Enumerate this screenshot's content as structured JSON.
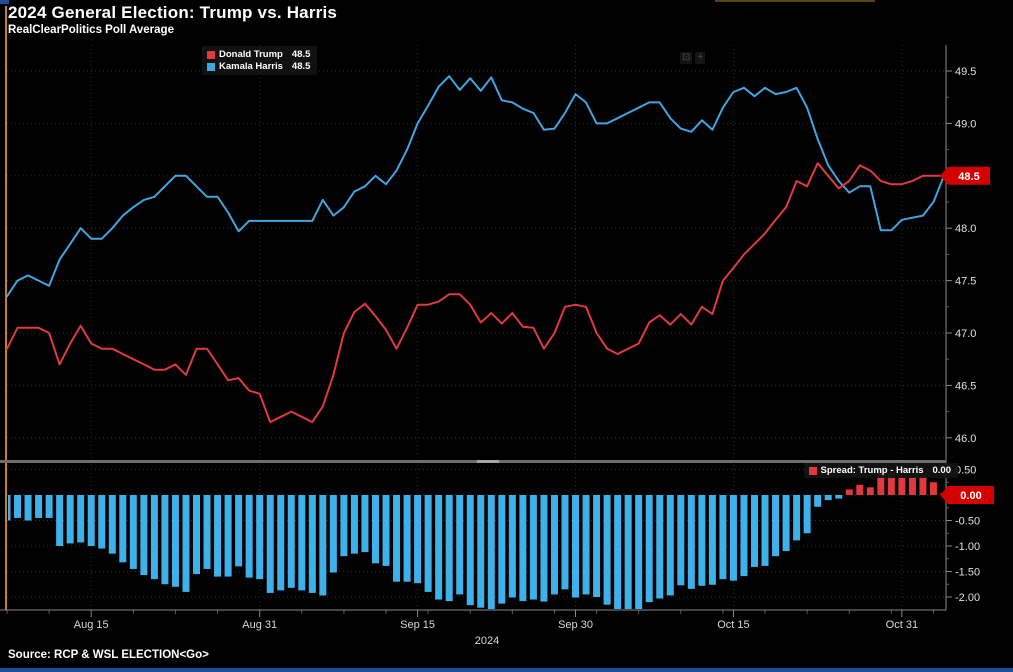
{
  "header": {
    "title": "2024 General Election: Trump vs. Harris",
    "subtitle": "RealClearPolitics Poll Average"
  },
  "legend": {
    "trump_label": "Donald Trump",
    "trump_value": "48.5",
    "harris_label": "Kamala Harris",
    "harris_value": "48.5"
  },
  "spread_legend": {
    "label": "Spread: Trump - Harris",
    "value": "0.00"
  },
  "axis": {
    "main_badge": "48.5",
    "lower_badge": "0.00",
    "year_label": "2024"
  },
  "footer": {
    "source": "Source: RCP & WSL ELECTION<Go>"
  },
  "colors": {
    "trump": "#e03a3e",
    "harris": "#42a5e0",
    "bar_negative": "#3fb1ea",
    "bar_positive": "#e0383c",
    "badge": "#d40000",
    "grid": "#2e2e2e",
    "axis_line": "#8a8a8a",
    "tick_text": "#e0e0e0",
    "amber": "#c87f2f"
  },
  "chart_data": {
    "type": "line",
    "title": "2024 General Election: Trump vs. Harris",
    "subtitle": "RealClearPolitics Poll Average",
    "legend_position": "top-left",
    "grid": "dotted",
    "x": [
      "Aug 7",
      "Aug 8",
      "Aug 9",
      "Aug 10",
      "Aug 11",
      "Aug 12",
      "Aug 13",
      "Aug 14",
      "Aug 15",
      "Aug 16",
      "Aug 17",
      "Aug 18",
      "Aug 19",
      "Aug 20",
      "Aug 21",
      "Aug 22",
      "Aug 23",
      "Aug 24",
      "Aug 25",
      "Aug 26",
      "Aug 27",
      "Aug 28",
      "Aug 29",
      "Aug 30",
      "Aug 31",
      "Sep 1",
      "Sep 2",
      "Sep 3",
      "Sep 4",
      "Sep 5",
      "Sep 6",
      "Sep 7",
      "Sep 8",
      "Sep 9",
      "Sep 10",
      "Sep 11",
      "Sep 12",
      "Sep 13",
      "Sep 14",
      "Sep 15",
      "Sep 16",
      "Sep 17",
      "Sep 18",
      "Sep 19",
      "Sep 20",
      "Sep 21",
      "Sep 22",
      "Sep 23",
      "Sep 24",
      "Sep 25",
      "Sep 26",
      "Sep 27",
      "Sep 28",
      "Sep 29",
      "Sep 30",
      "Oct 1",
      "Oct 2",
      "Oct 3",
      "Oct 4",
      "Oct 5",
      "Oct 6",
      "Oct 7",
      "Oct 8",
      "Oct 9",
      "Oct 10",
      "Oct 11",
      "Oct 12",
      "Oct 13",
      "Oct 14",
      "Oct 15",
      "Oct 16",
      "Oct 17",
      "Oct 18",
      "Oct 19",
      "Oct 20",
      "Oct 21",
      "Oct 22",
      "Oct 23",
      "Oct 24",
      "Oct 25",
      "Oct 26",
      "Oct 27",
      "Oct 28",
      "Oct 29",
      "Oct 30",
      "Oct 31",
      "Nov 1",
      "Nov 2",
      "Nov 3",
      "Nov 4"
    ],
    "series": [
      {
        "name": "Donald Trump",
        "color": "#e03a3e",
        "last_value": 48.5,
        "values": [
          46.85,
          47.05,
          47.05,
          47.05,
          47.0,
          46.7,
          46.9,
          47.07,
          46.9,
          46.85,
          46.85,
          46.8,
          46.75,
          46.7,
          46.65,
          46.65,
          46.7,
          46.6,
          46.85,
          46.85,
          46.7,
          46.55,
          46.57,
          46.45,
          46.42,
          46.15,
          46.2,
          46.25,
          46.2,
          46.15,
          46.3,
          46.6,
          47.0,
          47.2,
          47.28,
          47.16,
          47.03,
          46.85,
          47.05,
          47.27,
          47.27,
          47.3,
          47.37,
          47.37,
          47.27,
          47.1,
          47.19,
          47.09,
          47.19,
          47.06,
          47.05,
          46.85,
          47.0,
          47.25,
          47.27,
          47.25,
          47.0,
          46.85,
          46.8,
          46.85,
          46.9,
          47.1,
          47.17,
          47.08,
          47.18,
          47.08,
          47.25,
          47.18,
          47.5,
          47.62,
          47.75,
          47.85,
          47.95,
          48.08,
          48.2,
          48.45,
          48.4,
          48.62,
          48.5,
          48.38,
          48.45,
          48.6,
          48.55,
          48.45,
          48.42,
          48.42,
          48.45,
          48.5,
          48.5,
          48.5
        ]
      },
      {
        "name": "Kamala Harris",
        "color": "#42a5e0",
        "last_value": 48.5,
        "values": [
          47.35,
          47.5,
          47.55,
          47.5,
          47.45,
          47.7,
          47.85,
          48.0,
          47.9,
          47.9,
          48.0,
          48.12,
          48.2,
          48.27,
          48.3,
          48.4,
          48.5,
          48.5,
          48.4,
          48.3,
          48.3,
          48.15,
          47.97,
          48.07,
          48.07,
          48.07,
          48.07,
          48.07,
          48.07,
          48.07,
          48.27,
          48.12,
          48.2,
          48.35,
          48.4,
          48.5,
          48.42,
          48.55,
          48.75,
          49.0,
          49.17,
          49.35,
          49.45,
          49.32,
          49.43,
          49.31,
          49.44,
          49.22,
          49.2,
          49.14,
          49.1,
          48.94,
          48.95,
          49.1,
          49.28,
          49.2,
          49.0,
          49.0,
          49.05,
          49.1,
          49.15,
          49.2,
          49.2,
          49.05,
          48.95,
          48.92,
          49.03,
          48.94,
          49.15,
          49.3,
          49.34,
          49.26,
          49.34,
          49.28,
          49.3,
          49.34,
          49.15,
          48.85,
          48.6,
          48.45,
          48.34,
          48.4,
          48.4,
          47.98,
          47.98,
          48.08,
          48.1,
          48.12,
          48.25,
          48.5
        ]
      }
    ],
    "main_panel": {
      "ylim": [
        45.78,
        49.75
      ],
      "yticks": [
        49.5,
        49.0,
        48.5,
        48.0,
        47.5,
        47.0,
        46.5,
        46.0
      ],
      "last_price_badge": {
        "series": "Donald Trump",
        "value": 48.5
      }
    },
    "lower_panel": {
      "type": "bar",
      "name": "Spread: Trump - Harris",
      "formula": "trump - harris",
      "final_value": 0.0,
      "ylim": [
        -2.35,
        0.65
      ],
      "yticks": [
        0.5,
        0.0,
        -0.5,
        -1.0,
        -1.5,
        -2.0
      ],
      "positive_color": "#e0383c",
      "negative_color": "#3fb1ea"
    },
    "x_tick_labels": [
      {
        "text": "Aug 15",
        "index": 8
      },
      {
        "text": "Aug 31",
        "index": 24
      },
      {
        "text": "Sep 15",
        "index": 39
      },
      {
        "text": "Sep 30",
        "index": 54
      },
      {
        "text": "Oct 15",
        "index": 69
      },
      {
        "text": "Oct 31",
        "index": 85
      }
    ],
    "xlabel": "2024",
    "ylabel": ""
  }
}
